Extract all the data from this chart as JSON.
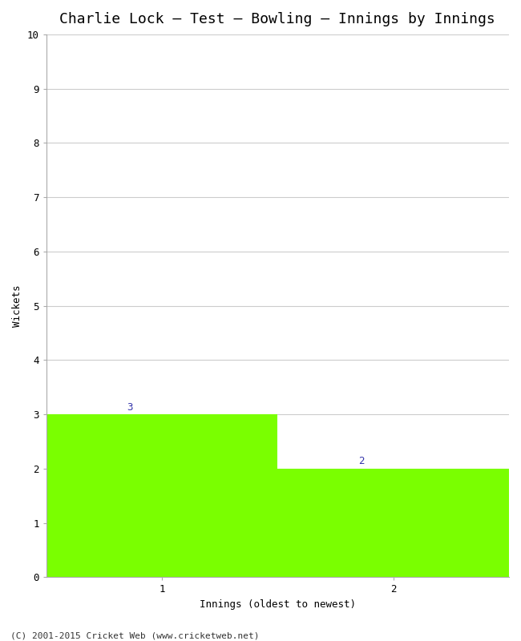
{
  "title": "Charlie Lock – Test – Bowling – Innings by Innings",
  "xlabel": "Innings (oldest to newest)",
  "ylabel": "Wickets",
  "categories": [
    1,
    2
  ],
  "values": [
    3,
    2
  ],
  "bar_color": "#7aff00",
  "ylim": [
    0,
    10
  ],
  "yticks": [
    0,
    1,
    2,
    3,
    4,
    5,
    6,
    7,
    8,
    9,
    10
  ],
  "xlim": [
    0.5,
    2.5
  ],
  "xticks": [
    1,
    2
  ],
  "annotation_color": "#3333aa",
  "annotation_fontsize": 9,
  "axis_label_fontsize": 9,
  "title_fontsize": 13,
  "tick_fontsize": 9,
  "footer": "(C) 2001-2015 Cricket Web (www.cricketweb.net)",
  "footer_fontsize": 8,
  "background_color": "#ffffff",
  "grid_color": "#cccccc"
}
